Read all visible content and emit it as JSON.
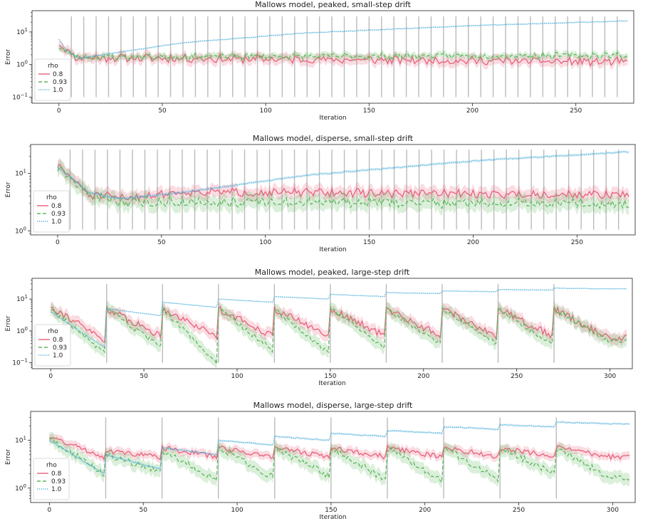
{
  "chart_data": [
    {
      "type": "line",
      "title": "Mallows model, peaked, small-step drift",
      "xlabel": "Iteration",
      "ylabel": "Error",
      "yscale": "log",
      "xlim": [
        -13,
        278
      ],
      "ylim": [
        0.065,
        45
      ],
      "xticks": [
        0,
        50,
        100,
        150,
        200,
        250
      ],
      "yticks": [
        {
          "v": 0.1,
          "b": "10",
          "e": "−1"
        },
        {
          "v": 1,
          "b": "10",
          "e": "0"
        },
        {
          "v": 10,
          "b": "10",
          "e": "1"
        }
      ],
      "drift_interval": 6,
      "drift_start": 0,
      "drift_end": 270,
      "drift_ymin": 0.1,
      "drift_ymax": 30,
      "legend": {
        "title": "rho",
        "entries": [
          "0.8",
          "0.93",
          "1.0"
        ],
        "placement": "lower-left"
      },
      "series": [
        {
          "name": "0.8",
          "start": 4.5,
          "trend": [
            [
              0,
              4.5
            ],
            [
              8,
              1.5
            ],
            [
              275,
              1.1
            ]
          ],
          "noise": 0.25,
          "band": 0.35,
          "jump": 1.4,
          "decay": 0.4,
          "seed": 11
        },
        {
          "name": "0.93",
          "start": 3.5,
          "trend": [
            [
              0,
              3.5
            ],
            [
              8,
              1.6
            ],
            [
              275,
              1.8
            ]
          ],
          "noise": 0.18,
          "band": 0.22,
          "jump": 1.2,
          "decay": 0.3,
          "seed": 23
        },
        {
          "name": "1.0",
          "start": 6.0,
          "trend": [
            [
              0,
              6.0
            ],
            [
              4,
              2.5
            ],
            [
              10,
              1.5
            ],
            [
              60,
              4.5
            ],
            [
              120,
              9
            ],
            [
              200,
              15
            ],
            [
              275,
              21
            ]
          ],
          "noise": 0.02,
          "band": 0.05,
          "jump": 1.05,
          "decay": 0.05,
          "seed": 37
        }
      ]
    },
    {
      "type": "line",
      "title": "Mallows model, disperse, small-step drift",
      "xlabel": "Iteration",
      "ylabel": "Error",
      "yscale": "log",
      "xlim": [
        -13,
        278
      ],
      "ylim": [
        0.85,
        32
      ],
      "xticks": [
        0,
        50,
        100,
        150,
        200,
        250
      ],
      "yticks": [
        {
          "v": 1,
          "b": "10",
          "e": "0"
        },
        {
          "v": 10,
          "b": "10",
          "e": "1"
        }
      ],
      "drift_interval": 6,
      "drift_start": 0,
      "drift_end": 270,
      "drift_ymin": 1.05,
      "drift_ymax": 26,
      "legend": {
        "title": "rho",
        "entries": [
          "0.8",
          "0.93",
          "1.0"
        ],
        "placement": "lower-left"
      },
      "series": [
        {
          "name": "0.8",
          "start": 14,
          "trend": [
            [
              0,
              14
            ],
            [
              15,
              4
            ],
            [
              30,
              3.5
            ],
            [
              60,
              4.5
            ],
            [
              275,
              4.0
            ]
          ],
          "noise": 0.15,
          "band": 0.25,
          "jump": 1.15,
          "decay": 0.25,
          "seed": 51
        },
        {
          "name": "0.93",
          "start": 12,
          "trend": [
            [
              0,
              12
            ],
            [
              15,
              4
            ],
            [
              30,
              3.0
            ],
            [
              60,
              3.0
            ],
            [
              275,
              2.8
            ]
          ],
          "noise": 0.18,
          "band": 0.3,
          "jump": 1.2,
          "decay": 0.3,
          "seed": 63
        },
        {
          "name": "1.0",
          "start": 13,
          "trend": [
            [
              0,
              13
            ],
            [
              15,
              4.5
            ],
            [
              30,
              3.5
            ],
            [
              60,
              4.5
            ],
            [
              120,
              9
            ],
            [
              200,
              16
            ],
            [
              275,
              23
            ]
          ],
          "noise": 0.02,
          "band": 0.05,
          "jump": 1.04,
          "decay": 0.04,
          "seed": 77
        }
      ]
    },
    {
      "type": "line",
      "title": "Mallows model, peaked, large-step drift",
      "xlabel": "Iteration",
      "ylabel": "Error",
      "yscale": "log",
      "xlim": [
        -10,
        312
      ],
      "ylim": [
        0.065,
        45
      ],
      "xticks": [
        0,
        50,
        100,
        150,
        200,
        250,
        300
      ],
      "yticks": [
        {
          "v": 0.1,
          "b": "10",
          "e": "−1"
        },
        {
          "v": 1,
          "b": "10",
          "e": "0"
        },
        {
          "v": 10,
          "b": "10",
          "e": "1"
        }
      ],
      "drift_interval": 30,
      "drift_start": 30,
      "drift_end": 270,
      "drift_ymin": 0.1,
      "drift_ymax": 30,
      "legend": {
        "title": "rho",
        "entries": [
          "0.8",
          "0.93",
          "1.0"
        ],
        "placement": "lower-left"
      },
      "series": [
        {
          "name": "0.8",
          "segments": [
            [
              6,
              0.5
            ],
            [
              5,
              0.7
            ],
            [
              5,
              0.7
            ],
            [
              5,
              0.7
            ],
            [
              5,
              0.7
            ],
            [
              5,
              0.7
            ],
            [
              5,
              0.7
            ],
            [
              5,
              0.7
            ],
            [
              5,
              0.7
            ],
            [
              5,
              0.6
            ]
          ],
          "noise": 0.25,
          "band": 0.4,
          "seed": 91
        },
        {
          "name": "0.93",
          "segments": [
            [
              5,
              0.2
            ],
            [
              5,
              0.3
            ],
            [
              5,
              0.1
            ],
            [
              5,
              0.25
            ],
            [
              5,
              0.2
            ],
            [
              5,
              0.3
            ],
            [
              5,
              0.4
            ],
            [
              5,
              0.4
            ],
            [
              5,
              0.4
            ],
            [
              5,
              0.5
            ]
          ],
          "noise": 0.18,
          "band": 0.45,
          "seed": 103
        },
        {
          "name": "1.0",
          "segments": [
            [
              4,
              0.3
            ],
            [
              5,
              3
            ],
            [
              8,
              5.5
            ],
            [
              10,
              8
            ],
            [
              12,
              10
            ],
            [
              14,
              12
            ],
            [
              16,
              15
            ],
            [
              18,
              17
            ],
            [
              20,
              19
            ],
            [
              22,
              21
            ]
          ],
          "noise": 0.015,
          "band": 0.04,
          "seed": 117
        }
      ]
    },
    {
      "type": "line",
      "title": "Mallows model, disperse, large-step drift",
      "xlabel": "Iteration",
      "ylabel": "Error",
      "yscale": "log",
      "xlim": [
        -10,
        312
      ],
      "ylim": [
        0.5,
        40
      ],
      "xticks": [
        0,
        50,
        100,
        150,
        200,
        250,
        300
      ],
      "yticks": [
        {
          "v": 1,
          "b": "10",
          "e": "0"
        },
        {
          "v": 10,
          "b": "10",
          "e": "1"
        }
      ],
      "drift_interval": 30,
      "drift_start": 30,
      "drift_end": 270,
      "drift_ymin": 0.6,
      "drift_ymax": 30,
      "legend": {
        "title": "rho",
        "entries": [
          "0.8",
          "0.93",
          "1.0"
        ],
        "placement": "lower-left"
      },
      "series": [
        {
          "name": "0.8",
          "segments": [
            [
              12,
              4.5
            ],
            [
              6,
              4.5
            ],
            [
              7,
              4.5
            ],
            [
              7,
              4.5
            ],
            [
              7,
              4.5
            ],
            [
              7,
              4.5
            ],
            [
              7,
              4.5
            ],
            [
              7,
              4.5
            ],
            [
              7,
              4.5
            ],
            [
              7,
              4.5
            ]
          ],
          "noise": 0.12,
          "band": 0.2,
          "seed": 131
        },
        {
          "name": "0.93",
          "segments": [
            [
              11,
              2.0
            ],
            [
              5,
              2.2
            ],
            [
              6,
              1.5
            ],
            [
              7,
              1.7
            ],
            [
              7,
              1.8
            ],
            [
              7,
              1.5
            ],
            [
              7,
              1.4
            ],
            [
              7,
              1.5
            ],
            [
              7,
              2.0
            ],
            [
              7,
              1.6
            ]
          ],
          "noise": 0.15,
          "band": 0.3,
          "seed": 149
        },
        {
          "name": "1.0",
          "segments": [
            [
              10,
              2.0
            ],
            [
              5,
              2.5
            ],
            [
              7,
              5
            ],
            [
              10,
              8
            ],
            [
              12,
              10
            ],
            [
              14,
              12
            ],
            [
              16,
              14
            ],
            [
              19,
              17
            ],
            [
              21,
              19
            ],
            [
              24,
              22
            ]
          ],
          "noise": 0.02,
          "band": 0.05,
          "seed": 163
        }
      ]
    }
  ],
  "colors": {
    "0.8": "#e8607a",
    "0.93": "#5cb85c",
    "1.0": "#4aaed9",
    "drift": "#bbbbbb"
  }
}
